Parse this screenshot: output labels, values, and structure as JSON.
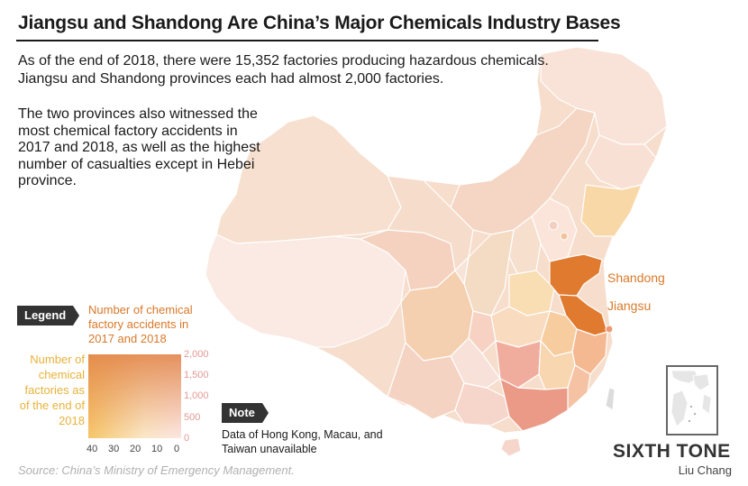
{
  "title": "Jiangsu and Shandong Are China’s Major Chemicals Industry Bases",
  "intro": "As of the end of 2018, there were 15,352 factories producing hazardous chemicals. Jiangsu and Shandong provinces each had almost 2,000 factories.",
  "detail": "The two provinces also witnessed the most chemical factory accidents in 2017 and 2018, as well as the highest number of casualties except in Hebei province.",
  "callouts": {
    "shandong": "Shandong",
    "jiangsu": "Jiangsu"
  },
  "legend": {
    "tag": "Legend",
    "accidents_label": "Number of chemical factory accidents in 2017 and 2018",
    "factories_label": "Number of chemical factories as of the end of 2018",
    "y_ticks": [
      "2,000",
      "1,500",
      "1,000",
      "500",
      "0"
    ],
    "x_ticks": [
      "40",
      "30",
      "20",
      "10",
      "0"
    ]
  },
  "note": {
    "tag": "Note",
    "text": "Data of Hong Kong, Macau, and Taiwan unavailable"
  },
  "source": "Source: China’s Ministry of Emergency Management.",
  "brand": "SIXTH TONE",
  "author": "Liu Chang",
  "colors": {
    "highlight": "#e07a2e",
    "accent_text": "#d9792a",
    "factories_text": "#e8b23a",
    "base_region": "#f6ddcc",
    "light_region": "#fbe9e3"
  }
}
